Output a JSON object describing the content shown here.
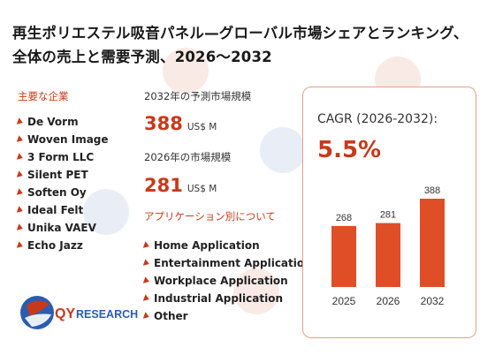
{
  "title": "再生ポリエステル吸音パネル—グローバル市場シェアとランキング、全体の売上と需要予測、2026〜2032",
  "companies_heading": "主要な企業",
  "companies": [
    "De Vorm",
    "Woven Image",
    "3 Form LLC",
    "Silent PET",
    "Soften Oy",
    "Ideal Felt",
    "Unika VAEV",
    "Echo Jazz"
  ],
  "forecast_label": "2032年の予測市場規模",
  "forecast_value": "388",
  "forecast_unit": "US$ M",
  "current_label": "2026年の市場規模",
  "current_value": "281",
  "current_unit": "US$ M",
  "applications_heading": "アプリケーション別について",
  "applications": [
    "Home Application",
    "Entertainment Application",
    "Workplace Application",
    "Industrial Application",
    "Other"
  ],
  "cagr_label": "CAGR (2026-2032):",
  "cagr_value": "5.5%",
  "logo_text_qy": "QY",
  "logo_text_research": "RESEARCH",
  "colors": {
    "accent": "#c8391b",
    "bar": "#e04e27",
    "border": "#e2a08f"
  },
  "chart_data": {
    "type": "bar",
    "categories": [
      "2025",
      "2026",
      "2032"
    ],
    "values": [
      268,
      281,
      388
    ],
    "ylim": [
      0,
      400
    ]
  }
}
